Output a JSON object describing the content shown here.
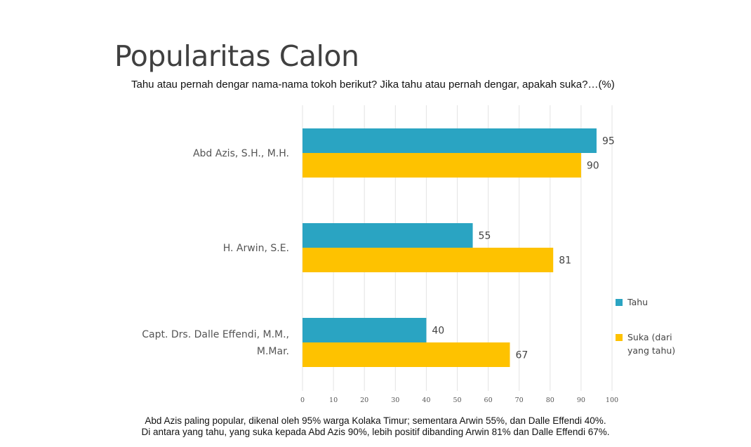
{
  "title": "Popularitas Calon",
  "subtitle": "Tahu atau pernah dengar nama-nama tokoh berikut? Jika tahu atau pernah dengar, apakah suka?…(%)",
  "footnote": {
    "line1": "Abd Azis paling popular, dikenal oleh 95% warga Kolaka Timur; sementara Arwin 55%, dan Dalle Effendi 40%.",
    "line2": "Di antara yang tahu, yang suka kepada Abd Azis 90%, lebih positif dibanding Arwin 81% dan Dalle Effendi 67%."
  },
  "chart_data": {
    "type": "bar",
    "orientation": "horizontal",
    "categories": [
      [
        "Abd Azis, S.H., M.H."
      ],
      [
        "H. Arwin, S.E."
      ],
      [
        "Capt. Drs. Dalle Effendi, M.M.,",
        "M.Mar."
      ]
    ],
    "series": [
      {
        "name": "Tahu",
        "values": [
          95,
          55,
          40
        ],
        "color": "#2aa4c2"
      },
      {
        "name": [
          "Suka (dari",
          "yang tahu)"
        ],
        "values": [
          90,
          81,
          67
        ],
        "color": "#fec200"
      }
    ],
    "xlim": [
      0,
      100
    ],
    "xticks": [
      0,
      10,
      20,
      30,
      40,
      50,
      60,
      70,
      80,
      90,
      100
    ],
    "grid": true,
    "legend_position": "right",
    "data_labels": true
  }
}
